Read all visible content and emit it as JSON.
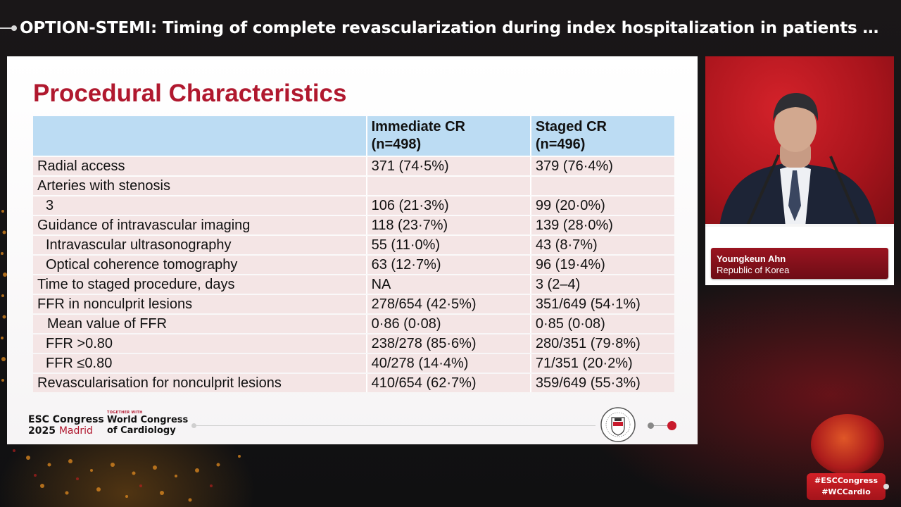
{
  "header": {
    "title": "OPTION-STEMI: Timing of complete revascularization during index hospitalization in patients with S…"
  },
  "slide": {
    "title": "Procedural Characteristics",
    "table": {
      "headers": [
        "",
        "Immediate CR",
        "Staged CR"
      ],
      "header_sub": [
        "",
        "(n=498)",
        "(n=496)"
      ],
      "rows": [
        {
          "label": "Radial access",
          "a": "371 (74·5%)",
          "b": "379 (76·4%)"
        },
        {
          "label": "Arteries with stenosis",
          "a": "",
          "b": ""
        },
        {
          "label": "3",
          "a": "106 (21·3%)",
          "b": "99 (20·0%)"
        },
        {
          "label": "Guidance of intravascular imaging",
          "a": "118 (23·7%)",
          "b": "139 (28·0%)"
        },
        {
          "label": "Intravascular ultrasonography",
          "a": "55 (11·0%)",
          "b": "43 (8·7%)"
        },
        {
          "label": "Optical coherence tomography",
          "a": "63 (12·7%)",
          "b": "96 (19·4%)"
        },
        {
          "label": "Time to staged procedure, days",
          "a": "NA",
          "b": "3 (2–4)"
        },
        {
          "label": "FFR in nonculprit lesions",
          "a": "278/654 (42·5%)",
          "b": "351/649 (54·1%)"
        },
        {
          "label": "Mean value of FFR",
          "a": "0·86 (0·08)",
          "b": "0·85 (0·08)"
        },
        {
          "label": "FFR >0.80",
          "a": "238/278 (85·6%)",
          "b": "280/351 (79·8%)"
        },
        {
          "label": "FFR ≤0.80",
          "a": "40/278 (14·4%)",
          "b": "71/351 (20·2%)"
        },
        {
          "label": "Revascularisation for nonculprit lesions",
          "a": "410/654 (62·7%)",
          "b": "359/649 (55·3%)"
        }
      ]
    },
    "footer": {
      "esc_line1": "ESC Congress",
      "esc_year": "2025",
      "esc_city": "Madrid",
      "together": "TOGETHER WITH",
      "wc_line1": "World Congress",
      "wc_line2": "of Cardiology"
    }
  },
  "speaker": {
    "name": "Youngkeun Ahn",
    "country": "Republic of Korea"
  },
  "hashtags": [
    "#ESCCongress",
    "#WCCardio"
  ],
  "colors": {
    "title_red": "#b0182e",
    "header_blue": "#bcdcf3",
    "row_pink": "#f4e5e5"
  }
}
